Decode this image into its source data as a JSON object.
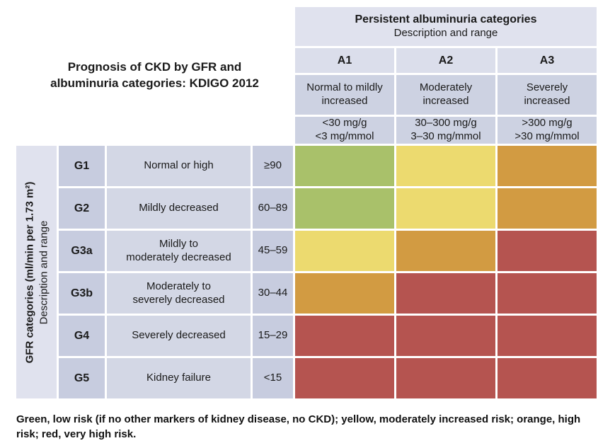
{
  "title_lines": [
    "Prognosis of CKD by GFR and",
    "albuminuria categories: KDIGO 2012"
  ],
  "albuminuria_header": {
    "title": "Persistent albuminuria categories",
    "subtitle": "Description and range"
  },
  "albuminuria_columns": [
    {
      "code": "A1",
      "description_lines": [
        "Normal to mildly",
        "increased"
      ],
      "range_lines": [
        "<30 mg/g",
        "<3 mg/mmol"
      ]
    },
    {
      "code": "A2",
      "description_lines": [
        "Moderately",
        "increased"
      ],
      "range_lines": [
        "30–300 mg/g",
        "3–30 mg/mmol"
      ]
    },
    {
      "code": "A3",
      "description_lines": [
        "Severely",
        "increased"
      ],
      "range_lines": [
        ">300 mg/g",
        ">30 mg/mmol"
      ]
    }
  ],
  "gfr_axis": {
    "label_bold": "GFR categories (ml/min per 1.73 m²)",
    "label_regular": "Description and range"
  },
  "gfr_rows": [
    {
      "code": "G1",
      "description_lines": [
        "Normal or high"
      ],
      "range": "≥90",
      "risk": [
        "green",
        "yellow",
        "orange"
      ]
    },
    {
      "code": "G2",
      "description_lines": [
        "Mildly decreased"
      ],
      "range": "60–89",
      "risk": [
        "green",
        "yellow",
        "orange"
      ]
    },
    {
      "code": "G3a",
      "description_lines": [
        "Mildly to",
        "moderately decreased"
      ],
      "range": "45–59",
      "risk": [
        "yellow",
        "orange",
        "red"
      ]
    },
    {
      "code": "G3b",
      "description_lines": [
        "Moderately to",
        "severely decreased"
      ],
      "range": "30–44",
      "risk": [
        "orange",
        "red",
        "red"
      ]
    },
    {
      "code": "G4",
      "description_lines": [
        "Severely decreased"
      ],
      "range": "15–29",
      "risk": [
        "red",
        "red",
        "red"
      ]
    },
    {
      "code": "G5",
      "description_lines": [
        "Kidney failure"
      ],
      "range": "<15",
      "risk": [
        "red",
        "red",
        "red"
      ]
    }
  ],
  "risk_colors": {
    "green": "#a9c16a",
    "yellow": "#ecda6f",
    "orange": "#d29b42",
    "red": "#b55450"
  },
  "footnote": "Green, low risk (if no other markers of kidney disease, no CKD); yellow, moderately increased risk; orange, high risk; red, very high risk.",
  "chart_data": {
    "type": "heatmap",
    "title": "Prognosis of CKD by GFR and albuminuria categories: KDIGO 2012",
    "x_axis_label": "Persistent albuminuria categories — Description and range",
    "y_axis_label": "GFR categories (ml/min per 1.73 m²) — Description and range",
    "x_categories": [
      "A1 (Normal to mildly increased, <30 mg/g, <3 mg/mmol)",
      "A2 (Moderately increased, 30–300 mg/g, 3–30 mg/mmol)",
      "A3 (Severely increased, >300 mg/g, >30 mg/mmol)"
    ],
    "y_categories": [
      "G1 (Normal or high, ≥90)",
      "G2 (Mildly decreased, 60–89)",
      "G3a (Mildly to moderately decreased, 45–59)",
      "G3b (Moderately to severely decreased, 30–44)",
      "G4 (Severely decreased, 15–29)",
      "G5 (Kidney failure, <15)"
    ],
    "values": [
      [
        "green",
        "yellow",
        "orange"
      ],
      [
        "green",
        "yellow",
        "orange"
      ],
      [
        "yellow",
        "orange",
        "red"
      ],
      [
        "orange",
        "red",
        "red"
      ],
      [
        "red",
        "red",
        "red"
      ],
      [
        "red",
        "red",
        "red"
      ]
    ],
    "value_meaning": {
      "green": "low risk (if no other markers of kidney disease, no CKD)",
      "yellow": "moderately increased risk",
      "orange": "high risk",
      "red": "very high risk"
    },
    "legend_position": "bottom caption"
  }
}
